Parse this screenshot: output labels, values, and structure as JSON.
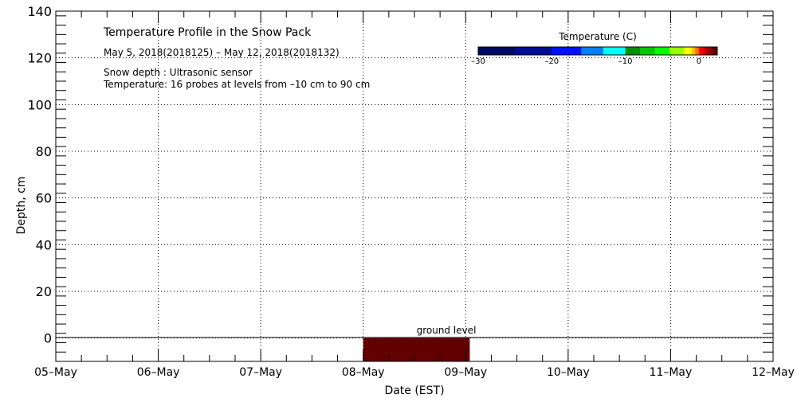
{
  "chart_data": {
    "type": "heatmap",
    "title": "Temperature Profile in the Snow Pack",
    "subtitle": "May  5, 2018(2018125) – May 12, 2018(2018132)",
    "notes": [
      "Snow depth : Ultrasonic sensor",
      "Temperature: 16 probes at levels from –10 cm to 90 cm"
    ],
    "xlabel": "Date (EST)",
    "ylabel": "Depth, cm",
    "x_ticks": [
      "05–May",
      "06–May",
      "07–May",
      "08–May",
      "09–May",
      "10–May",
      "11–May",
      "12–May"
    ],
    "y_ticks": [
      140,
      120,
      100,
      80,
      60,
      40,
      20,
      0
    ],
    "ylim": [
      -10,
      140
    ],
    "xlim_days": [
      0,
      7
    ],
    "grid": true,
    "ground_label": "ground level",
    "ground_level": 0,
    "filled_regions": [
      {
        "x_start_day": 3.0,
        "x_end_day": 4.04,
        "y_from": -10,
        "y_to": 0,
        "color": "#620000"
      }
    ],
    "colorbar": {
      "title": "Temperature (C)",
      "ticks": [
        -30,
        -20,
        -10,
        0
      ],
      "tick_labels": [
        "–30",
        "–20",
        "–10",
        "0"
      ],
      "range": [
        -30,
        2.5
      ],
      "bins": [
        {
          "from": -30,
          "to": -25,
          "color": "#000a60"
        },
        {
          "from": -25,
          "to": -20,
          "color": "#000c94"
        },
        {
          "from": -20,
          "to": -16,
          "color": "#0010ff"
        },
        {
          "from": -16,
          "to": -13,
          "color": "#0080ff"
        },
        {
          "from": -13,
          "to": -10,
          "color": "#00ffff"
        },
        {
          "from": -10,
          "to": -8,
          "color": "#009000"
        },
        {
          "from": -8,
          "to": -6,
          "color": "#00c800"
        },
        {
          "from": -6,
          "to": -4,
          "color": "#00ff00"
        },
        {
          "from": -4,
          "to": -2,
          "color": "#98ff00"
        },
        {
          "from": -2,
          "to": -1,
          "color": "#ffff00"
        },
        {
          "from": -1,
          "to": -0.5,
          "color": "#ffc000"
        },
        {
          "from": -0.5,
          "to": 0,
          "color": "#ff7000"
        },
        {
          "from": 0,
          "to": 0.5,
          "color": "#ff0000"
        },
        {
          "from": 0.5,
          "to": 1,
          "color": "#d00000"
        },
        {
          "from": 1,
          "to": 1.7,
          "color": "#a00000"
        },
        {
          "from": 1.7,
          "to": 2.5,
          "color": "#620000"
        }
      ]
    }
  }
}
